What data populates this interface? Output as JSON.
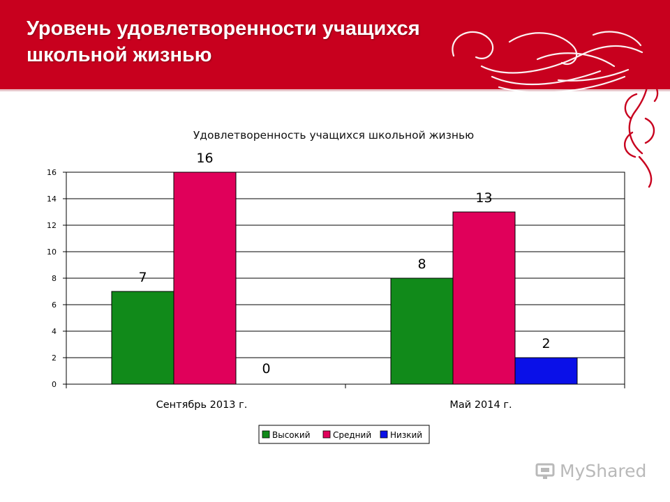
{
  "slide": {
    "title_line1": "Уровень удовлетворенности учащихся",
    "title_line2": "школьной жизнью",
    "accent_color": "#c8001e"
  },
  "watermark": {
    "brand": "MyShared"
  },
  "chart_data": {
    "type": "bar",
    "title": "Удовлетворенность учащихся школьной жизнью",
    "categories": [
      "Сентябрь 2013 г.",
      "Май 2014 г."
    ],
    "series": [
      {
        "name": "Высокий",
        "values": [
          7,
          8
        ],
        "color": "#118a1a"
      },
      {
        "name": "Средний",
        "values": [
          16,
          13
        ],
        "color": "#e0005a"
      },
      {
        "name": "Низкий",
        "values": [
          0,
          2
        ],
        "color": "#0a10e8"
      }
    ],
    "yticks": [
      "0",
      "2",
      "4",
      "6",
      "8",
      "10",
      "12",
      "14",
      "16"
    ],
    "ylim": [
      0,
      16
    ],
    "grid": true,
    "legend_position": "bottom"
  }
}
